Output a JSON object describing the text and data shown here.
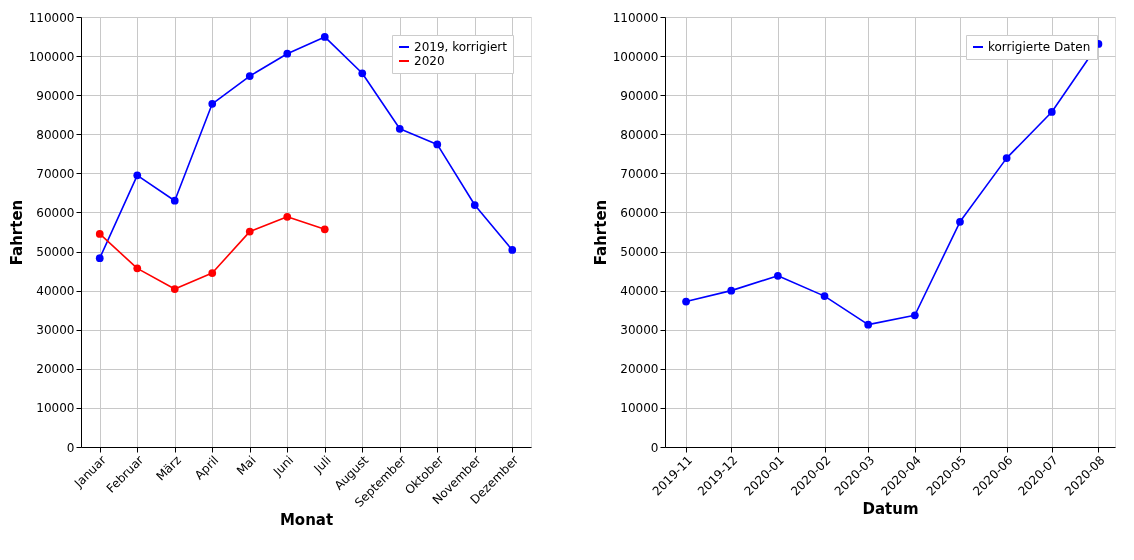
{
  "chart_data": [
    {
      "type": "line",
      "xlabel": "Monat",
      "ylabel": "Fahrten",
      "categories": [
        "Januar",
        "Februar",
        "März",
        "April",
        "Mai",
        "Juni",
        "Juli",
        "August",
        "September",
        "Oktober",
        "November",
        "Dezember"
      ],
      "series": [
        {
          "name": "2019, korrigiert",
          "color": "#0000ff",
          "values": [
            48300,
            69500,
            63000,
            87800,
            94900,
            100600,
            104900,
            95600,
            81400,
            77400,
            61900,
            50400
          ]
        },
        {
          "name": "2020",
          "color": "#ff0000",
          "values": [
            54500,
            45700,
            40400,
            44500,
            55100,
            58900,
            55700,
            null,
            null,
            null,
            null,
            null
          ]
        }
      ],
      "ylim": [
        0,
        110000
      ],
      "yticks": [
        0,
        10000,
        20000,
        30000,
        40000,
        50000,
        60000,
        70000,
        80000,
        90000,
        100000,
        110000
      ],
      "grid": true,
      "legend": "top right",
      "marker": "circle",
      "line_style": "solid"
    },
    {
      "type": "line",
      "xlabel": "Datum",
      "ylabel": "Fahrten",
      "x": [
        "2019-11-01",
        "2019-12-01",
        "2020-01-01",
        "2020-02-01",
        "2020-03-01",
        "2020-04-01",
        "2020-05-01",
        "2020-06-01",
        "2020-07-01",
        "2020-08-01"
      ],
      "series": [
        {
          "name": "korrigierte Daten",
          "color": "#0000ff",
          "values": [
            37200,
            40000,
            43800,
            38600,
            31300,
            33700,
            57600,
            73900,
            85700,
            103100
          ]
        }
      ],
      "xlim": [
        "2019-10-18",
        "2020-08-12"
      ],
      "xticks": [
        {
          "value": "2019-11-01",
          "label": "2019-11"
        },
        {
          "value": "2019-12-01",
          "label": "2019-12"
        },
        {
          "value": "2020-01-01",
          "label": "2020-01"
        },
        {
          "value": "2020-02-01",
          "label": "2020-02"
        },
        {
          "value": "2020-03-01",
          "label": "2020-03"
        },
        {
          "value": "2020-04-01",
          "label": "2020-04"
        },
        {
          "value": "2020-05-01",
          "label": "2020-05"
        },
        {
          "value": "2020-06-01",
          "label": "2020-06"
        },
        {
          "value": "2020-07-01",
          "label": "2020-07"
        },
        {
          "value": "2020-08-01",
          "label": "2020-08"
        }
      ],
      "ylim": [
        0,
        110000
      ],
      "yticks": [
        0,
        10000,
        20000,
        30000,
        40000,
        50000,
        60000,
        70000,
        80000,
        90000,
        100000,
        110000
      ],
      "grid": true,
      "legend": "top right",
      "marker": "circle",
      "line_style": "solid"
    }
  ]
}
